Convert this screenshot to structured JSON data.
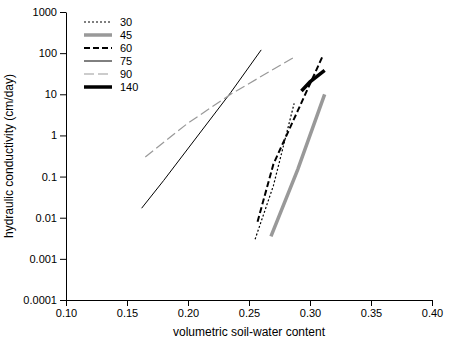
{
  "chart_data": {
    "type": "line",
    "x_label": "volumetric soil-water content",
    "y_label": "hydraulic conductivity (cm/day)",
    "log": "y",
    "legend": "upper left",
    "xlim": [
      0.1,
      0.4
    ],
    "xticks": [
      {
        "value": 0.1,
        "label": "0.10"
      },
      0.15,
      {
        "value": 0.2,
        "label": "0.20"
      },
      0.25,
      {
        "value": 0.3,
        "label": "0.30"
      },
      0.35,
      {
        "value": 0.4,
        "label": "0.40"
      }
    ],
    "ylim": [
      0.0001,
      1000
    ],
    "yticks": [
      0.0001,
      0.001,
      0.01,
      0.1,
      1,
      10,
      100,
      1000
    ],
    "series": [
      {
        "name": "30",
        "color": "#000000",
        "line_style": "dotted",
        "x": [
          0.255,
          0.27,
          0.287
        ],
        "values": [
          0.003,
          0.06,
          6
        ]
      },
      {
        "name": "45",
        "color": "#999999",
        "line_style": "thick",
        "x": [
          0.268,
          0.29,
          0.312
        ],
        "values": [
          0.0035,
          0.15,
          10
        ]
      },
      {
        "name": "60",
        "color": "#000000",
        "line_style": "dashed",
        "x": [
          0.257,
          0.27,
          0.29,
          0.31
        ],
        "values": [
          0.008,
          0.2,
          4,
          80
        ]
      },
      {
        "name": "75",
        "color": "#000000",
        "line_style": "solid",
        "x": [
          0.162,
          0.18,
          0.235,
          0.26
        ],
        "values": [
          0.017,
          0.08,
          11,
          120
        ]
      },
      {
        "name": "90",
        "color": "#999999",
        "line_style": "long-dashed",
        "x": [
          0.165,
          0.2,
          0.235,
          0.287
        ],
        "values": [
          0.3,
          2,
          10,
          80
        ]
      },
      {
        "name": "140",
        "color": "#000000",
        "line_style": "thick",
        "x": [
          0.293,
          0.3,
          0.312
        ],
        "values": [
          12,
          20,
          38
        ]
      }
    ]
  }
}
